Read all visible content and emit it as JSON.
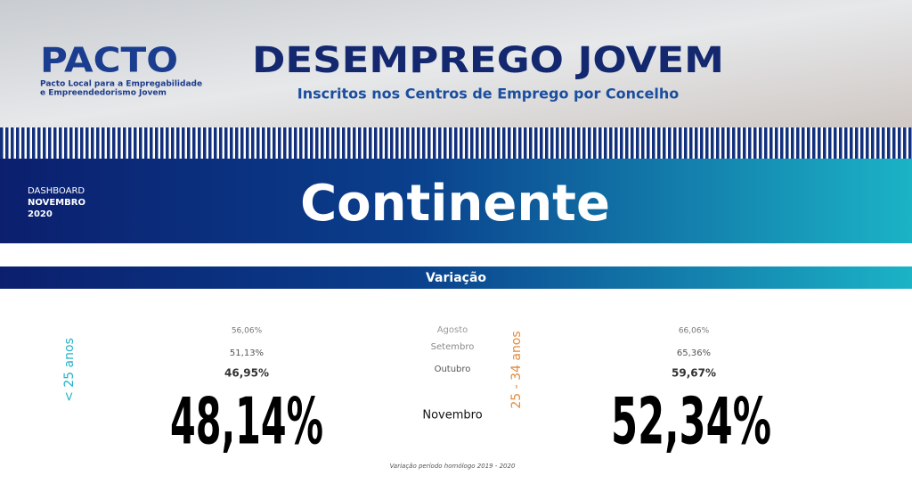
{
  "header": {
    "logo": "PACTO",
    "logo_lines": [
      "Pacto Local para a Empregabilidade",
      "e Empreendedorismo Jovem"
    ],
    "title": "DESEMPREGO JOVEM",
    "subtitle": "Inscritos nos Centros de Emprego por Concelho"
  },
  "banner": {
    "label": "DASHBOARD",
    "month": "NOVEMBRO",
    "year": "2020",
    "region": "Continente"
  },
  "section": "Variação",
  "left": {
    "group": "< 25 anos",
    "previous": [
      "56,06%",
      "51,13%",
      "46,95%"
    ],
    "current": "48,14%"
  },
  "months": [
    "Agosto",
    "Setembro",
    "Outubro",
    "Novembro"
  ],
  "right": {
    "group": "25 - 34 anos",
    "previous": [
      "66,06%",
      "65,36%",
      "59,67%"
    ],
    "current": "52,34%"
  },
  "footnote": "Variação período homólogo 2019 - 2020"
}
